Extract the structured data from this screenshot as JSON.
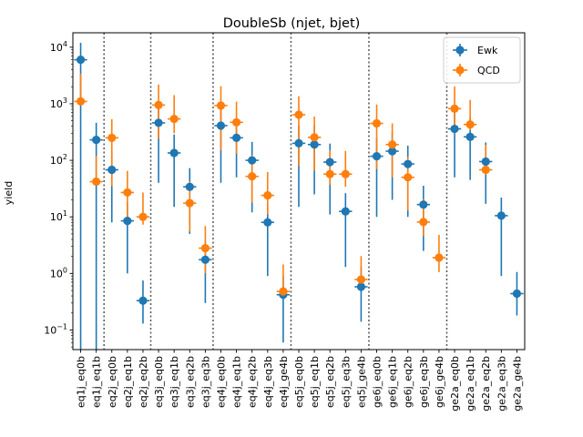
{
  "chart_data": {
    "type": "scatter",
    "title": "DoubleSb (njet, bjet)",
    "xlabel": "",
    "ylabel": "yield",
    "yscale": "log",
    "ylim": [
      0.045,
      18000
    ],
    "y_ticks": [
      {
        "value": 0.1,
        "base": "10",
        "exp": "−1"
      },
      {
        "value": 1,
        "base": "10",
        "exp": "0"
      },
      {
        "value": 10,
        "base": "10",
        "exp": "1"
      },
      {
        "value": 100,
        "base": "10",
        "exp": "2"
      },
      {
        "value": 1000,
        "base": "10",
        "exp": "3"
      },
      {
        "value": 10000,
        "base": "10",
        "exp": "4"
      }
    ],
    "categories": [
      "eq1j_eq0b",
      "eq1j_eq1b",
      "eq2j_eq0b",
      "eq2j_eq1b",
      "eq2j_eq2b",
      "eq3j_eq0b",
      "eq3j_eq1b",
      "eq3j_eq2b",
      "eq3j_eq3b",
      "eq4j_eq0b",
      "eq4j_eq1b",
      "eq4j_eq2b",
      "eq4j_eq3b",
      "eq4j_ge4b",
      "eq5j_eq0b",
      "eq5j_eq1b",
      "eq5j_eq2b",
      "eq5j_eq3b",
      "eq5j_ge4b",
      "ge6j_eq0b",
      "ge6j_eq1b",
      "ge6j_eq2b",
      "ge6j_eq3b",
      "ge6j_ge4b",
      "ge2a_eq0b",
      "ge2a_eq1b",
      "ge2a_eq2b",
      "ge2a_eq3b",
      "ge2a_ge4b"
    ],
    "separators_after_index": [
      1,
      4,
      8,
      13,
      18,
      23
    ],
    "legend_position": "top-right",
    "series": [
      {
        "name": "Ewk",
        "color": "#1f77b4",
        "values": [
          6000,
          230,
          68,
          8.5,
          0.33,
          460,
          135,
          34,
          1.75,
          410,
          250,
          100,
          8.0,
          0.42,
          200,
          190,
          93,
          12.5,
          0.58,
          118,
          145,
          86,
          16.5,
          null,
          360,
          260,
          95,
          10.5,
          0.44
        ],
        "err_low": [
          6000,
          230,
          60,
          7.5,
          0.2,
          420,
          120,
          29,
          1.45,
          370,
          200,
          88,
          7.1,
          0.36,
          185,
          165,
          82,
          11.2,
          0.44,
          108,
          125,
          76,
          14.0,
          null,
          310,
          215,
          78,
          9.6,
          0.26
        ],
        "err_high": [
          6000,
          230,
          78,
          9.6,
          0.42,
          500,
          150,
          39,
          2.05,
          450,
          300,
          112,
          8.9,
          0.48,
          215,
          215,
          104,
          13.8,
          0.72,
          128,
          165,
          96,
          19.0,
          null,
          410,
          305,
          112,
          11.4,
          0.62
        ]
      },
      {
        "name": "QCD",
        "color": "#ff7f0e",
        "values": [
          1100,
          42,
          250,
          27,
          10,
          950,
          540,
          17.5,
          2.8,
          930,
          470,
          52,
          24,
          0.48,
          640,
          255,
          57,
          57,
          0.78,
          450,
          190,
          50,
          8.1,
          1.9,
          820,
          430,
          68,
          null,
          null
        ],
        "err_low": [
          0.03,
          5,
          215,
          17,
          2.7,
          710,
          240,
          12,
          1.8,
          780,
          340,
          34,
          13,
          0.03,
          560,
          190,
          20,
          23,
          0.28,
          380,
          140,
          37,
          3.5,
          0.85,
          520,
          90,
          12,
          null,
          null
        ],
        "err_high": [
          2300,
          78,
          285,
          38,
          17,
          1230,
          880,
          25,
          4.1,
          1110,
          620,
          72,
          38,
          0.96,
          720,
          340,
          94,
          90,
          1.25,
          520,
          260,
          65,
          12.5,
          2.9,
          1200,
          740,
          120,
          null,
          null
        ]
      }
    ]
  }
}
